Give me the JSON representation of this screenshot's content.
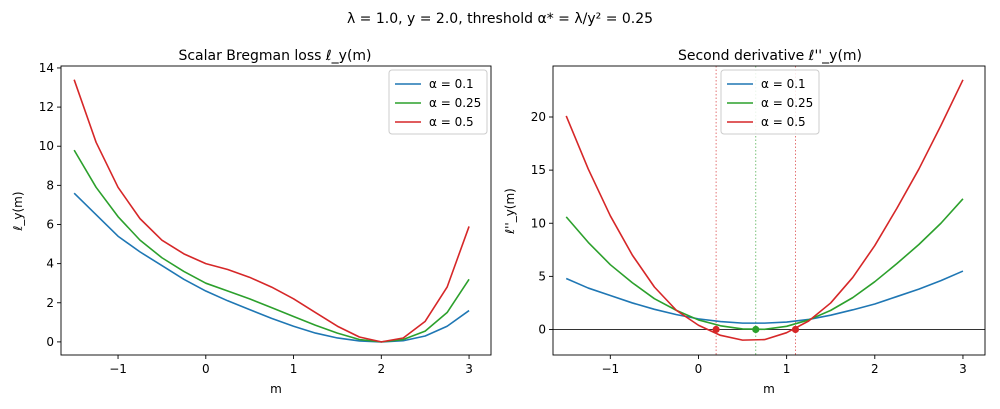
{
  "figure": {
    "suptitle": "λ = 1.0, y = 2.0, threshold α* = λ/y² = 0.25"
  },
  "colors": {
    "blue": "#1f77b4",
    "green": "#2ca02c",
    "red": "#d62728",
    "zero_line": "#333333"
  },
  "chart_data": [
    {
      "type": "line",
      "title": "Scalar Bregman loss ℓ_y(m)",
      "xlabel": "m",
      "ylabel": "ℓ_y(m)",
      "xlim": [
        -1.65,
        3.25
      ],
      "ylim": [
        -0.67,
        14.1
      ],
      "xticks": [
        -1,
        0,
        1,
        2,
        3
      ],
      "yticks": [
        0,
        2,
        4,
        6,
        8,
        10,
        12,
        14
      ],
      "legend_position": "top-right",
      "series": [
        {
          "name": "α = 0.1",
          "color": "#1f77b4",
          "x": [
            -1.5,
            -1.25,
            -1.0,
            -0.75,
            -0.5,
            -0.25,
            0.0,
            0.25,
            0.5,
            0.75,
            1.0,
            1.25,
            1.5,
            1.75,
            2.0,
            2.25,
            2.5,
            2.75,
            3.0
          ],
          "y": [
            7.6,
            6.5,
            5.4,
            4.6,
            3.9,
            3.2,
            2.6,
            2.1,
            1.65,
            1.2,
            0.8,
            0.45,
            0.2,
            0.05,
            0.0,
            0.06,
            0.3,
            0.8,
            1.6
          ]
        },
        {
          "name": "α = 0.25",
          "color": "#2ca02c",
          "x": [
            -1.5,
            -1.25,
            -1.0,
            -0.75,
            -0.5,
            -0.25,
            0.0,
            0.25,
            0.5,
            0.75,
            1.0,
            1.25,
            1.5,
            1.75,
            2.0,
            2.25,
            2.5,
            2.75,
            3.0
          ],
          "y": [
            9.8,
            7.9,
            6.4,
            5.2,
            4.3,
            3.6,
            3.0,
            2.6,
            2.2,
            1.75,
            1.3,
            0.85,
            0.45,
            0.12,
            0.0,
            0.12,
            0.55,
            1.5,
            3.2
          ]
        },
        {
          "name": "α = 0.5",
          "color": "#d62728",
          "x": [
            -1.5,
            -1.25,
            -1.0,
            -0.75,
            -0.5,
            -0.25,
            0.0,
            0.25,
            0.5,
            0.75,
            1.0,
            1.25,
            1.5,
            1.75,
            2.0,
            2.25,
            2.5,
            2.75,
            3.0
          ],
          "y": [
            13.4,
            10.2,
            7.9,
            6.3,
            5.2,
            4.5,
            4.0,
            3.7,
            3.3,
            2.8,
            2.2,
            1.5,
            0.8,
            0.25,
            0.0,
            0.2,
            1.05,
            2.8,
            5.9
          ]
        }
      ]
    },
    {
      "type": "line",
      "title": "Second derivative ℓ''_y(m)",
      "xlabel": "m",
      "ylabel": "ℓ''_y(m)",
      "xlim": [
        -1.65,
        3.25
      ],
      "ylim": [
        -2.4,
        24.8
      ],
      "xticks": [
        -1,
        0,
        1,
        2,
        3
      ],
      "yticks": [
        0,
        5,
        10,
        15,
        20
      ],
      "legend_position": "top-center",
      "zero_line": true,
      "vertical_markers": [
        {
          "x": 0.2,
          "color": "#d62728"
        },
        {
          "x": 0.65,
          "color": "#2ca02c"
        },
        {
          "x": 1.1,
          "color": "#d62728"
        }
      ],
      "points": [
        {
          "x": 0.2,
          "y": 0,
          "color": "#d62728"
        },
        {
          "x": 0.65,
          "y": 0,
          "color": "#2ca02c"
        },
        {
          "x": 1.1,
          "y": 0,
          "color": "#d62728"
        }
      ],
      "series": [
        {
          "name": "α = 0.1",
          "color": "#1f77b4",
          "x": [
            -1.5,
            -1.25,
            -1.0,
            -0.75,
            -0.5,
            -0.25,
            0.0,
            0.25,
            0.5,
            0.75,
            1.0,
            1.25,
            1.5,
            1.75,
            2.0,
            2.25,
            2.5,
            2.75,
            3.0
          ],
          "y": [
            4.8,
            3.9,
            3.2,
            2.5,
            1.9,
            1.4,
            1.0,
            0.75,
            0.6,
            0.6,
            0.7,
            0.95,
            1.35,
            1.85,
            2.4,
            3.1,
            3.8,
            4.6,
            5.5
          ]
        },
        {
          "name": "α = 0.25",
          "color": "#2ca02c",
          "x": [
            -1.5,
            -1.25,
            -1.0,
            -0.75,
            -0.5,
            -0.25,
            0.0,
            0.25,
            0.5,
            0.75,
            1.0,
            1.25,
            1.5,
            1.75,
            2.0,
            2.25,
            2.5,
            2.75,
            3.0
          ],
          "y": [
            10.6,
            8.2,
            6.1,
            4.4,
            2.9,
            1.8,
            0.9,
            0.35,
            0.05,
            0.02,
            0.3,
            0.9,
            1.8,
            3.0,
            4.5,
            6.2,
            8.0,
            10.0,
            12.3
          ]
        },
        {
          "name": "α = 0.5",
          "color": "#d62728",
          "x": [
            -1.5,
            -1.25,
            -1.0,
            -0.75,
            -0.5,
            -0.25,
            0.0,
            0.25,
            0.5,
            0.75,
            1.0,
            1.25,
            1.5,
            1.75,
            2.0,
            2.25,
            2.5,
            2.75,
            3.0
          ],
          "y": [
            20.1,
            15.1,
            10.7,
            7.0,
            4.0,
            1.8,
            0.4,
            -0.55,
            -1.0,
            -0.95,
            -0.3,
            0.8,
            2.5,
            4.9,
            7.9,
            11.4,
            15.1,
            19.2,
            23.5
          ]
        }
      ]
    }
  ]
}
